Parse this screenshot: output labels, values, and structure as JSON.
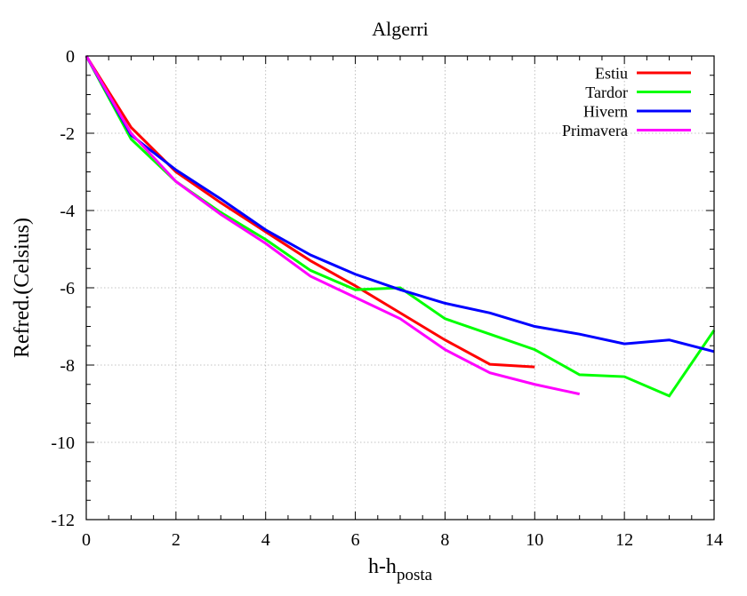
{
  "chart_data": {
    "type": "line",
    "title": "Algerri",
    "xlabel": {
      "main": "h-h",
      "sub": "posta"
    },
    "ylabel": "Refred.(Celsius)",
    "xlim": [
      0,
      14
    ],
    "ylim": [
      -12,
      0
    ],
    "x_ticks": [
      0,
      2,
      4,
      6,
      8,
      10,
      12,
      14
    ],
    "y_ticks": [
      0,
      -2,
      -4,
      -6,
      -8,
      -10,
      -12
    ],
    "x_minor_step": 0.5,
    "y_minor_step": 0.5,
    "grid": true,
    "legend_position": "top-right",
    "series": [
      {
        "name": "Estiu",
        "color": "#ff0000",
        "x": [
          0,
          1,
          2,
          3,
          4,
          5,
          6,
          7,
          8,
          9,
          10
        ],
        "values": [
          0,
          -1.85,
          -3.0,
          -3.8,
          -4.55,
          -5.3,
          -5.95,
          -6.65,
          -7.35,
          -7.98,
          -8.05
        ]
      },
      {
        "name": "Tardor",
        "color": "#00ff00",
        "x": [
          0,
          1,
          2,
          3,
          4,
          5,
          6,
          7,
          8,
          9,
          10,
          11,
          12,
          13,
          14
        ],
        "values": [
          0,
          -2.15,
          -3.25,
          -4.05,
          -4.75,
          -5.55,
          -6.05,
          -6.0,
          -6.8,
          -7.2,
          -7.6,
          -8.25,
          -8.3,
          -8.8,
          -7.1
        ]
      },
      {
        "name": "Hivern",
        "color": "#0000ff",
        "x": [
          0,
          1,
          2,
          3,
          4,
          5,
          6,
          7,
          8,
          9,
          10,
          11,
          12,
          13,
          14
        ],
        "values": [
          0,
          -2.05,
          -2.95,
          -3.7,
          -4.5,
          -5.15,
          -5.65,
          -6.05,
          -6.4,
          -6.65,
          -7.0,
          -7.2,
          -7.45,
          -7.35,
          -7.65
        ]
      },
      {
        "name": "Primavera",
        "color": "#ff00ff",
        "x": [
          0,
          1,
          2,
          3,
          4,
          5,
          6,
          7,
          8,
          9,
          10,
          11
        ],
        "values": [
          0,
          -2.0,
          -3.25,
          -4.1,
          -4.85,
          -5.7,
          -6.25,
          -6.8,
          -7.6,
          -8.2,
          -8.5,
          -8.75
        ]
      }
    ]
  }
}
